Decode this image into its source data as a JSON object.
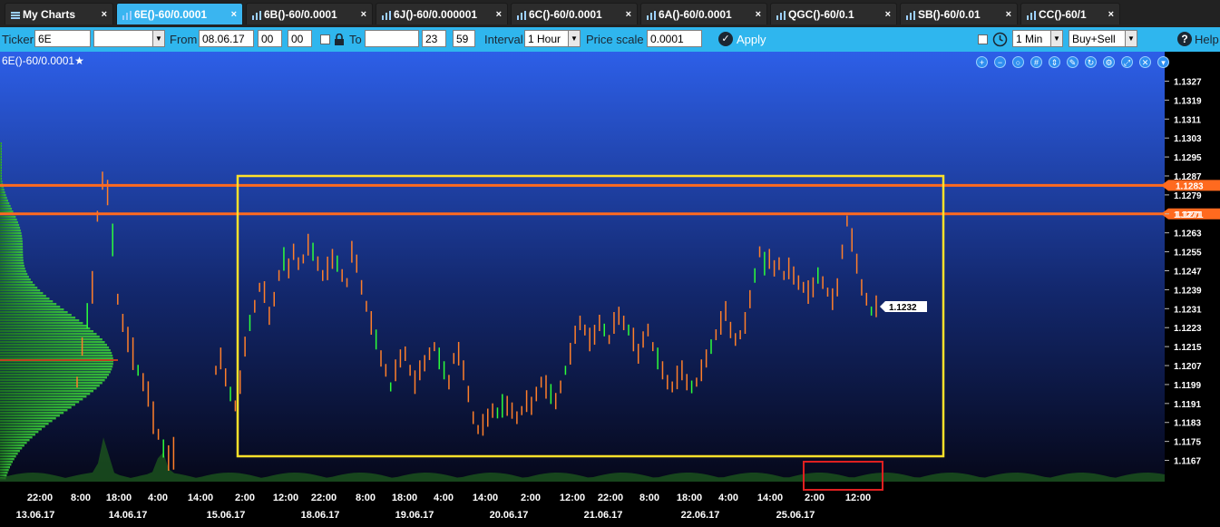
{
  "tabs": [
    {
      "label": "My Charts",
      "icon": "menu-icon",
      "active": false
    },
    {
      "label": "6E()-60/0.0001",
      "icon": "chart-bars-icon",
      "active": true
    },
    {
      "label": "6B()-60/0.0001",
      "icon": "chart-bars-icon",
      "active": false
    },
    {
      "label": "6J()-60/0.000001",
      "icon": "chart-bars-icon",
      "active": false
    },
    {
      "label": "6C()-60/0.0001",
      "icon": "chart-bars-icon",
      "active": false
    },
    {
      "label": "6A()-60/0.0001",
      "icon": "chart-bars-icon",
      "active": false
    },
    {
      "label": "QGC()-60/0.1",
      "icon": "chart-bars-icon",
      "active": false
    },
    {
      "label": "SB()-60/0.01",
      "icon": "chart-bars-icon",
      "active": false
    },
    {
      "label": "CC()-60/1",
      "icon": "chart-bars-icon",
      "active": false
    }
  ],
  "tab_close": "×",
  "toolbar": {
    "ticker_label": "Ticker",
    "ticker_value": "6E",
    "from_label": "From",
    "from_date": "08.06.17",
    "from_hour": "00",
    "from_min": "00",
    "to_label": "To",
    "to_date": "",
    "to_hour": "23",
    "to_min": "59",
    "interval_label": "Interval",
    "interval_value": "1 Hour",
    "price_scale_label": "Price scale",
    "price_scale_value": "0.0001",
    "apply_label": "Apply",
    "timeframe_value": "1 Min",
    "side_value": "Buy+Sell",
    "help_label": "Help"
  },
  "chart": {
    "title": "6E()-60/0.0001",
    "star": "★",
    "current_price": "1.1232",
    "colors": {
      "bg_top": "#2d5fe8",
      "bg_bottom": "#06081a",
      "bar_up": "#ff7f2a",
      "bar_green": "#2cff3a",
      "level_line": "#ff6a1f",
      "highlight_box": "#ffe12a",
      "marker_box": "#e02020"
    },
    "tool_icons": [
      "zoom-in-icon",
      "zoom-out-icon",
      "zoom-reset-icon",
      "grid-icon",
      "scale-icon",
      "pencil-icon",
      "refresh-icon",
      "settings-icon",
      "fullscreen-icon",
      "close-icon",
      "dropdown-icon"
    ]
  },
  "chart_data": {
    "type": "bar",
    "price_axis": [
      "1.1327",
      "1.1319",
      "1.1311",
      "1.1303",
      "1.1295",
      "1.1287",
      "1.1279",
      "1.1271",
      "1.1263",
      "1.1255",
      "1.1247",
      "1.1239",
      "1.1231",
      "1.1223",
      "1.1215",
      "1.1207",
      "1.1199",
      "1.1191",
      "1.1183",
      "1.1175",
      "1.1167"
    ],
    "ylim": [
      1.1163,
      1.1331
    ],
    "level_lines": [
      {
        "value": 1.1283,
        "label": "1.1283"
      },
      {
        "value": 1.1271,
        "label": "1.1271"
      }
    ],
    "time_ticks": [
      "22:00",
      "8:00",
      "18:00",
      "4:00",
      "14:00",
      "2:00",
      "12:00",
      "22:00",
      "8:00",
      "18:00",
      "4:00",
      "14:00",
      "2:00",
      "12:00",
      "22:00",
      "8:00",
      "18:00",
      "4:00",
      "14:00",
      "2:00",
      "12:00"
    ],
    "date_ticks": [
      "13.06.17",
      "14.06.17",
      "15.06.17",
      "18.06.17",
      "19.06.17",
      "20.06.17",
      "21.06.17",
      "22.06.17",
      "25.06.17"
    ],
    "close_series": [
      1.1205,
      1.121,
      1.1202,
      1.1195,
      1.119,
      1.12,
      1.1215,
      1.1225,
      1.1232,
      1.124,
      1.1238,
      1.1228,
      1.1235,
      1.1245,
      1.1252,
      1.1248,
      1.1255,
      1.125,
      1.1252,
      1.1258,
      1.1255,
      1.125,
      1.1245,
      1.1248,
      1.1252,
      1.125,
      1.1245,
      1.1242,
      1.1255,
      1.125,
      1.124,
      1.1232,
      1.1225,
      1.1218,
      1.121,
      1.1205,
      1.1198,
      1.1205,
      1.121,
      1.1212,
      1.1205,
      1.12,
      1.1205,
      1.1208,
      1.1212,
      1.1215,
      1.121,
      1.1205,
      1.12,
      1.121,
      1.1212,
      1.1205,
      1.1195,
      1.1185,
      1.118,
      1.1182,
      1.1185,
      1.1188,
      1.1187,
      1.119,
      1.119,
      1.1188,
      1.1185,
      1.1188,
      1.1192,
      1.119,
      1.1195,
      1.12,
      1.1198,
      1.1195,
      1.1192,
      1.1198,
      1.1205,
      1.1212,
      1.122,
      1.1225,
      1.1222,
      1.1218,
      1.122,
      1.1225,
      1.1222,
      1.1218,
      1.1225,
      1.1228,
      1.1225,
      1.1222,
      1.1218,
      1.1212,
      1.1218,
      1.1222,
      1.1215,
      1.121,
      1.1205,
      1.12,
      1.1198,
      1.1202,
      1.1205,
      1.12,
      1.1198,
      1.12,
      1.1205,
      1.121,
      1.1215,
      1.122,
      1.1225,
      1.123,
      1.1222,
      1.1218,
      1.122,
      1.1225,
      1.1235,
      1.1245,
      1.1255,
      1.125,
      1.1252,
      1.1248,
      1.125,
      1.1245,
      1.1248,
      1.1245,
      1.1242,
      1.124,
      1.1238,
      1.124,
      1.1245,
      1.1242,
      1.1238,
      1.1235,
      1.124,
      1.1255,
      1.1268,
      1.126,
      1.125,
      1.124,
      1.1235,
      1.123,
      1.1232
    ]
  }
}
